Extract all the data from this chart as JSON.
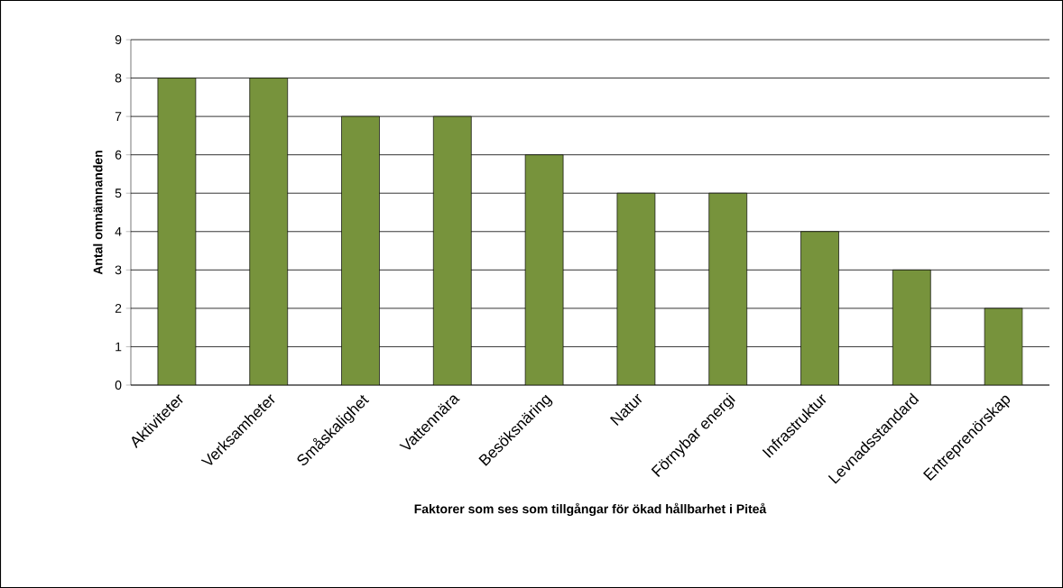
{
  "chart_data": {
    "type": "bar",
    "xlabel": "Faktorer som ses som tillgångar för ökad hållbarhet i Piteå",
    "ylabel": "Antal omnämnanden",
    "categories": [
      "Aktiviteter",
      "Verksamheter",
      "Småskalighet",
      "Vattennära",
      "Besöksnäring",
      "Natur",
      "Förnybar energi",
      "Infrastruktur",
      "Levnadsstandard",
      "Entreprenörskap"
    ],
    "values": [
      8,
      8,
      7,
      7,
      6,
      5,
      5,
      4,
      3,
      2
    ],
    "color": "#77933c",
    "ylim": [
      0,
      9
    ],
    "yticks": [
      0,
      1,
      2,
      3,
      4,
      5,
      6,
      7,
      8,
      9
    ],
    "grid": "y"
  }
}
